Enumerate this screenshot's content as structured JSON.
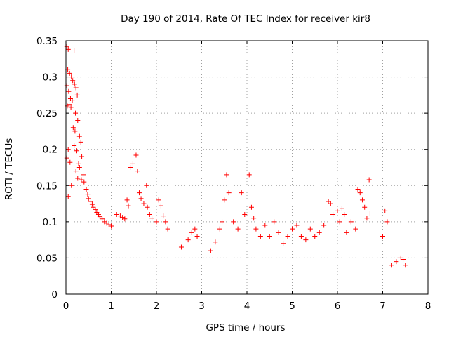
{
  "chart_data": {
    "type": "scatter",
    "title": "Day 190 of 2014, Rate Of TEC Index for receiver kir8",
    "xlabel": "GPS time / hours",
    "ylabel": "ROTI / TECUs",
    "xlim": [
      0,
      8
    ],
    "ylim": [
      0,
      0.35
    ],
    "x_ticks": [
      0,
      1,
      2,
      3,
      4,
      5,
      6,
      7,
      8
    ],
    "x_tick_labels": [
      "0",
      "1",
      "2",
      "3",
      "4",
      "5",
      "6",
      "7",
      "8"
    ],
    "y_ticks": [
      0,
      0.05,
      0.1,
      0.15,
      0.2,
      0.25,
      0.3,
      0.35
    ],
    "y_tick_labels": [
      "0",
      "0.05",
      "0.1",
      "0.15",
      "0.2",
      "0.25",
      "0.3",
      "0.35"
    ],
    "grid": true,
    "marker": "+",
    "marker_color": "#ff0000",
    "series": [
      {
        "name": "ROTI",
        "points": [
          [
            0.02,
            0.342
          ],
          [
            0.05,
            0.338
          ],
          [
            0.18,
            0.336
          ],
          [
            0.04,
            0.31
          ],
          [
            0.08,
            0.305
          ],
          [
            0.12,
            0.3
          ],
          [
            0.15,
            0.295
          ],
          [
            0.19,
            0.29
          ],
          [
            0.22,
            0.285
          ],
          [
            0.25,
            0.275
          ],
          [
            0.02,
            0.288
          ],
          [
            0.06,
            0.28
          ],
          [
            0.1,
            0.27
          ],
          [
            0.14,
            0.268
          ],
          [
            0.03,
            0.26
          ],
          [
            0.07,
            0.262
          ],
          [
            0.11,
            0.258
          ],
          [
            0.21,
            0.25
          ],
          [
            0.26,
            0.24
          ],
          [
            0.16,
            0.23
          ],
          [
            0.2,
            0.225
          ],
          [
            0.3,
            0.218
          ],
          [
            0.33,
            0.21
          ],
          [
            0.05,
            0.2
          ],
          [
            0.18,
            0.205
          ],
          [
            0.24,
            0.198
          ],
          [
            0.35,
            0.19
          ],
          [
            0.02,
            0.188
          ],
          [
            0.09,
            0.182
          ],
          [
            0.28,
            0.18
          ],
          [
            0.3,
            0.175
          ],
          [
            0.22,
            0.17
          ],
          [
            0.38,
            0.165
          ],
          [
            0.26,
            0.16
          ],
          [
            0.34,
            0.158
          ],
          [
            0.4,
            0.155
          ],
          [
            0.12,
            0.15
          ],
          [
            0.45,
            0.145
          ],
          [
            0.05,
            0.135
          ],
          [
            0.48,
            0.138
          ],
          [
            0.5,
            0.132
          ],
          [
            0.55,
            0.128
          ],
          [
            0.58,
            0.124
          ],
          [
            0.6,
            0.12
          ],
          [
            0.65,
            0.117
          ],
          [
            0.68,
            0.113
          ],
          [
            0.72,
            0.11
          ],
          [
            0.75,
            0.107
          ],
          [
            0.8,
            0.104
          ],
          [
            0.85,
            0.1
          ],
          [
            0.9,
            0.098
          ],
          [
            0.95,
            0.096
          ],
          [
            1.0,
            0.094
          ],
          [
            1.12,
            0.11
          ],
          [
            1.2,
            0.108
          ],
          [
            1.25,
            0.106
          ],
          [
            1.3,
            0.104
          ],
          [
            1.35,
            0.13
          ],
          [
            1.38,
            0.122
          ],
          [
            1.42,
            0.175
          ],
          [
            1.48,
            0.18
          ],
          [
            1.55,
            0.192
          ],
          [
            1.58,
            0.17
          ],
          [
            1.62,
            0.14
          ],
          [
            1.66,
            0.132
          ],
          [
            1.72,
            0.125
          ],
          [
            1.78,
            0.15
          ],
          [
            1.8,
            0.12
          ],
          [
            1.85,
            0.11
          ],
          [
            1.9,
            0.105
          ],
          [
            2.0,
            0.1
          ],
          [
            2.05,
            0.13
          ],
          [
            2.1,
            0.122
          ],
          [
            2.15,
            0.108
          ],
          [
            2.2,
            0.1
          ],
          [
            2.25,
            0.09
          ],
          [
            2.55,
            0.065
          ],
          [
            2.7,
            0.075
          ],
          [
            2.78,
            0.085
          ],
          [
            2.85,
            0.09
          ],
          [
            2.9,
            0.08
          ],
          [
            3.2,
            0.06
          ],
          [
            3.3,
            0.072
          ],
          [
            3.4,
            0.09
          ],
          [
            3.45,
            0.1
          ],
          [
            3.5,
            0.13
          ],
          [
            3.55,
            0.165
          ],
          [
            3.6,
            0.14
          ],
          [
            3.7,
            0.1
          ],
          [
            3.8,
            0.09
          ],
          [
            3.88,
            0.14
          ],
          [
            3.95,
            0.11
          ],
          [
            4.05,
            0.165
          ],
          [
            4.1,
            0.12
          ],
          [
            4.15,
            0.105
          ],
          [
            4.2,
            0.09
          ],
          [
            4.3,
            0.08
          ],
          [
            4.4,
            0.095
          ],
          [
            4.5,
            0.08
          ],
          [
            4.6,
            0.1
          ],
          [
            4.7,
            0.085
          ],
          [
            4.8,
            0.07
          ],
          [
            4.9,
            0.08
          ],
          [
            5.0,
            0.09
          ],
          [
            5.1,
            0.095
          ],
          [
            5.2,
            0.08
          ],
          [
            5.3,
            0.075
          ],
          [
            5.4,
            0.09
          ],
          [
            5.5,
            0.08
          ],
          [
            5.6,
            0.085
          ],
          [
            5.7,
            0.095
          ],
          [
            5.8,
            0.128
          ],
          [
            5.85,
            0.125
          ],
          [
            5.9,
            0.11
          ],
          [
            6.0,
            0.115
          ],
          [
            6.05,
            0.1
          ],
          [
            6.1,
            0.118
          ],
          [
            6.15,
            0.11
          ],
          [
            6.2,
            0.085
          ],
          [
            6.3,
            0.1
          ],
          [
            6.4,
            0.09
          ],
          [
            6.45,
            0.145
          ],
          [
            6.5,
            0.14
          ],
          [
            6.55,
            0.13
          ],
          [
            6.6,
            0.12
          ],
          [
            6.65,
            0.105
          ],
          [
            6.7,
            0.158
          ],
          [
            6.72,
            0.112
          ],
          [
            7.0,
            0.08
          ],
          [
            7.05,
            0.115
          ],
          [
            7.1,
            0.1
          ],
          [
            7.2,
            0.04
          ],
          [
            7.3,
            0.045
          ],
          [
            7.4,
            0.05
          ],
          [
            7.45,
            0.048
          ],
          [
            7.5,
            0.04
          ]
        ]
      }
    ]
  }
}
